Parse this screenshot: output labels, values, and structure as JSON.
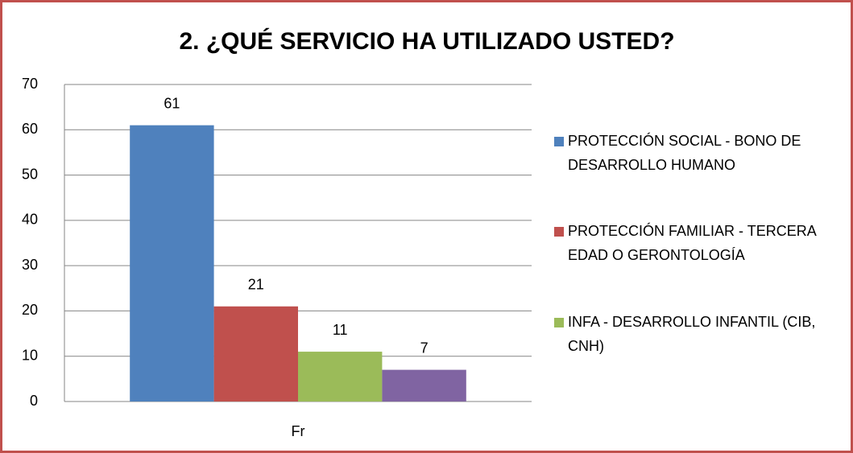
{
  "chart_data": {
    "type": "bar",
    "title": "2. ¿QUÉ SERVICIO HA UTILIZADO USTED?",
    "categories": [
      "Fr"
    ],
    "series": [
      {
        "name": "PROTECCIÓN SOCIAL - BONO DE DESARROLLO HUMANO",
        "color": "#4f81bd",
        "values": [
          61
        ]
      },
      {
        "name": "PROTECCIÓN FAMILIAR - TERCERA EDAD O GERONTOLOGÍA",
        "color": "#c0504d",
        "values": [
          21
        ]
      },
      {
        "name": "INFA - DESARROLLO INFANTIL (CIB, CNH)",
        "color": "#9bbb59",
        "values": [
          11
        ]
      },
      {
        "color": "#8064a2",
        "values": [
          7
        ]
      }
    ],
    "ylim": [
      0,
      70
    ],
    "yticks": [
      0,
      10,
      20,
      30,
      40,
      50,
      60,
      70
    ],
    "grid": true,
    "legend": "right"
  }
}
